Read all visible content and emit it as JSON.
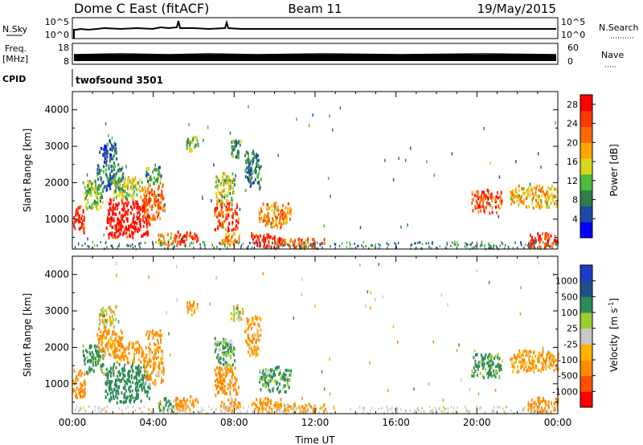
{
  "header": {
    "title": "Dome C East (fitACF)",
    "beam": "Beam 11",
    "date": "19/May/2015"
  },
  "strips": {
    "nsky": {
      "left_label": "N.Sky",
      "axis_left_top": "10^5",
      "axis_left_bottom": "10^0",
      "axis_right_top": "10^5",
      "axis_right_bottom": "10^0",
      "right_label": "N.Search"
    },
    "freq": {
      "left_label_line1": "Freq.",
      "left_label_line2": "[MHz]",
      "axis_left_top": "18",
      "axis_left_bottom": "8",
      "axis_right_top": "60",
      "axis_right_bottom": "0",
      "right_label": "Nave"
    },
    "cpid": {
      "left_label": "CPID",
      "program": "twofsound 3501"
    }
  },
  "colors": {
    "power_scale": [
      "#0000ff",
      "#1e4aa5",
      "#2e7d4a",
      "#4cbb3c",
      "#d7d71e",
      "#ffa500",
      "#ff6a00",
      "#ff3800",
      "#ff0000"
    ],
    "velocity_scale": [
      "#ff0000",
      "#ff5000",
      "#ff8c00",
      "#ffb400",
      "#c8c8c8",
      "#9acd32",
      "#2e8b57",
      "#20508c",
      "#1e3cc8"
    ]
  },
  "chart_data": [
    {
      "type": "heatmap",
      "name_param": "Power",
      "xlabel": "",
      "ylabel": "Slant Range [km]",
      "x_ticks": [
        "00:00",
        "04:00",
        "08:00",
        "12:00",
        "16:00",
        "20:00",
        "00:00"
      ],
      "xlim_hours": [
        0,
        24
      ],
      "y_ticks": [
        "1000",
        "2000",
        "3000",
        "4000"
      ],
      "ylim_km": [
        180,
        4500
      ],
      "colorbar": {
        "label": "Power [dB]",
        "ticks": [
          "4",
          "8",
          "12",
          "16",
          "20",
          "24",
          "28"
        ],
        "range": [
          0,
          30
        ]
      },
      "echo_regions": [
        {
          "t0": 0.0,
          "t1": 0.6,
          "r0": 600,
          "r1": 1400,
          "value": 26
        },
        {
          "t0": 0.5,
          "t1": 1.5,
          "r0": 1300,
          "r1": 2100,
          "value": 12
        },
        {
          "t0": 1.2,
          "t1": 2.5,
          "r0": 1800,
          "r1": 2600,
          "value": 8
        },
        {
          "t0": 1.3,
          "t1": 2.2,
          "r0": 2600,
          "r1": 3200,
          "value": 6
        },
        {
          "t0": 1.6,
          "t1": 3.8,
          "r0": 500,
          "r1": 1600,
          "value": 28
        },
        {
          "t0": 2.0,
          "t1": 3.5,
          "r0": 1600,
          "r1": 2200,
          "value": 14
        },
        {
          "t0": 3.5,
          "t1": 4.5,
          "r0": 1000,
          "r1": 2000,
          "value": 22
        },
        {
          "t0": 3.6,
          "t1": 4.4,
          "r0": 2000,
          "r1": 2500,
          "value": 10
        },
        {
          "t0": 4.2,
          "t1": 5.0,
          "r0": 300,
          "r1": 650,
          "value": 18
        },
        {
          "t0": 5.0,
          "t1": 6.2,
          "r0": 300,
          "r1": 700,
          "value": 26
        },
        {
          "t0": 5.6,
          "t1": 6.2,
          "r0": 2900,
          "r1": 3300,
          "value": 12
        },
        {
          "t0": 7.0,
          "t1": 8.2,
          "r0": 700,
          "r1": 1500,
          "value": 24
        },
        {
          "t0": 7.0,
          "t1": 8.0,
          "r0": 1500,
          "r1": 2300,
          "value": 14
        },
        {
          "t0": 7.3,
          "t1": 8.3,
          "r0": 300,
          "r1": 650,
          "value": 20
        },
        {
          "t0": 7.8,
          "t1": 8.4,
          "r0": 2700,
          "r1": 3200,
          "value": 10
        },
        {
          "t0": 8.5,
          "t1": 9.3,
          "r0": 1800,
          "r1": 2900,
          "value": 8
        },
        {
          "t0": 8.8,
          "t1": 10.3,
          "r0": 250,
          "r1": 650,
          "value": 26
        },
        {
          "t0": 9.2,
          "t1": 10.8,
          "r0": 800,
          "r1": 1500,
          "value": 20
        },
        {
          "t0": 10.0,
          "t1": 12.5,
          "r0": 250,
          "r1": 500,
          "value": 22
        },
        {
          "t0": 19.7,
          "t1": 21.2,
          "r0": 1200,
          "r1": 1850,
          "value": 24
        },
        {
          "t0": 21.6,
          "t1": 24.0,
          "r0": 1350,
          "r1": 1950,
          "value": 18
        },
        {
          "t0": 22.5,
          "t1": 24.0,
          "r0": 250,
          "r1": 650,
          "value": 26
        }
      ]
    },
    {
      "type": "heatmap",
      "name_param": "Velocity",
      "xlabel": "Time UT",
      "ylabel": "Slant Range [km]",
      "x_ticks": [
        "00:00",
        "04:00",
        "08:00",
        "12:00",
        "16:00",
        "20:00",
        "00:00"
      ],
      "xlim_hours": [
        0,
        24
      ],
      "y_ticks": [
        "1000",
        "2000",
        "3000",
        "4000"
      ],
      "ylim_km": [
        180,
        4500
      ],
      "colorbar": {
        "label_main": "Velocity",
        "label_unit": "[m s",
        "label_exp": "-1",
        "label_close": "]",
        "ticks": [
          "-1000",
          "-500",
          "-100",
          "-25",
          "25",
          "100",
          "500",
          "1000"
        ]
      },
      "echo_regions": [
        {
          "t0": 0.0,
          "t1": 0.6,
          "r0": 600,
          "r1": 1400,
          "value": -300
        },
        {
          "t0": 0.5,
          "t1": 1.5,
          "r0": 1300,
          "r1": 2100,
          "value": 200
        },
        {
          "t0": 1.2,
          "t1": 2.5,
          "r0": 1800,
          "r1": 2600,
          "value": -150
        },
        {
          "t0": 1.3,
          "t1": 2.2,
          "r0": 2600,
          "r1": 3200,
          "value": 0
        },
        {
          "t0": 1.6,
          "t1": 3.8,
          "r0": 500,
          "r1": 1600,
          "value": 300
        },
        {
          "t0": 2.0,
          "t1": 3.5,
          "r0": 1600,
          "r1": 2200,
          "value": -200
        },
        {
          "t0": 3.5,
          "t1": 4.5,
          "r0": 1000,
          "r1": 2000,
          "value": -150
        },
        {
          "t0": 3.6,
          "t1": 4.4,
          "r0": 2000,
          "r1": 2500,
          "value": -300
        },
        {
          "t0": 4.2,
          "t1": 5.0,
          "r0": 300,
          "r1": 650,
          "value": 150
        },
        {
          "t0": 5.0,
          "t1": 6.2,
          "r0": 300,
          "r1": 700,
          "value": -200
        },
        {
          "t0": 5.6,
          "t1": 6.2,
          "r0": 2900,
          "r1": 3300,
          "value": -120
        },
        {
          "t0": 7.0,
          "t1": 8.2,
          "r0": 700,
          "r1": 1500,
          "value": -250
        },
        {
          "t0": 7.0,
          "t1": 8.0,
          "r0": 1500,
          "r1": 2300,
          "value": 120
        },
        {
          "t0": 7.3,
          "t1": 8.3,
          "r0": 300,
          "r1": 650,
          "value": -150
        },
        {
          "t0": 7.8,
          "t1": 8.4,
          "r0": 2700,
          "r1": 3200,
          "value": 0
        },
        {
          "t0": 8.5,
          "t1": 9.3,
          "r0": 1800,
          "r1": 2900,
          "value": -150
        },
        {
          "t0": 8.8,
          "t1": 10.3,
          "r0": 250,
          "r1": 650,
          "value": -200
        },
        {
          "t0": 9.2,
          "t1": 10.8,
          "r0": 800,
          "r1": 1500,
          "value": 150
        },
        {
          "t0": 10.0,
          "t1": 12.5,
          "r0": 250,
          "r1": 500,
          "value": -150
        },
        {
          "t0": 19.7,
          "t1": 21.2,
          "r0": 1200,
          "r1": 1850,
          "value": 200
        },
        {
          "t0": 21.6,
          "t1": 24.0,
          "r0": 1350,
          "r1": 1950,
          "value": -150
        },
        {
          "t0": 22.5,
          "t1": 24.0,
          "r0": 250,
          "r1": 650,
          "value": -250
        }
      ]
    }
  ]
}
